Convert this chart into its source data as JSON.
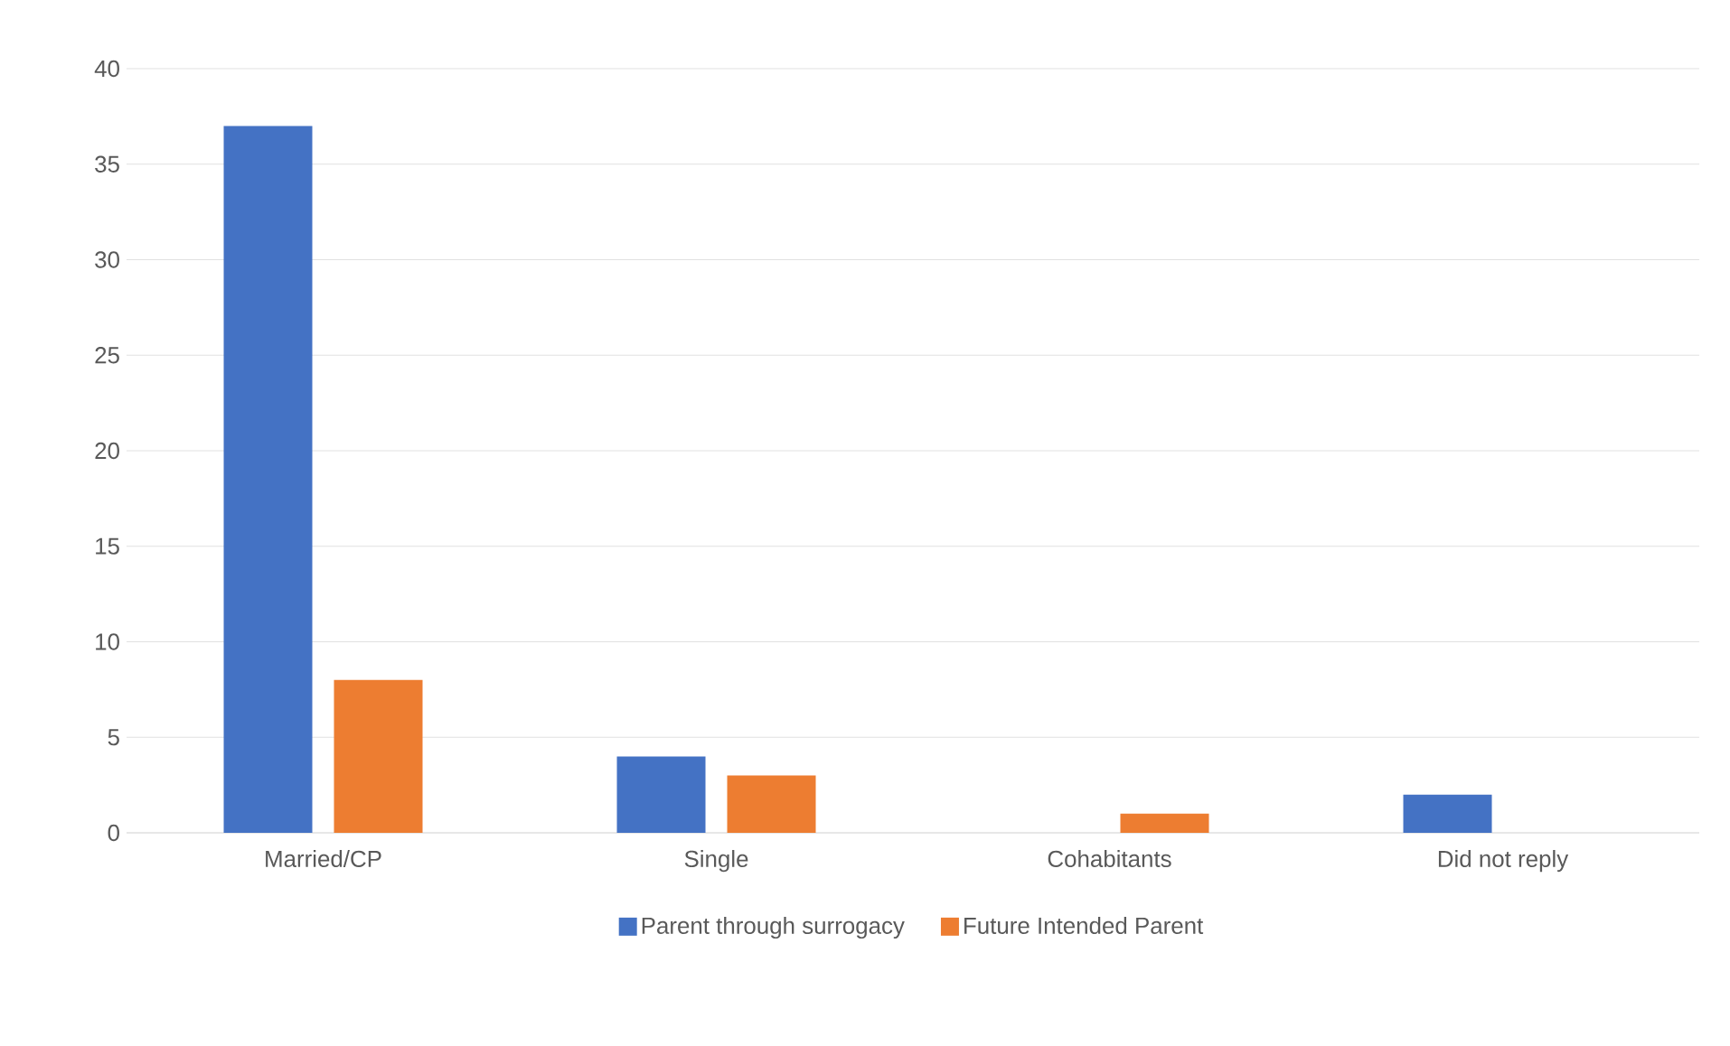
{
  "chart_data": {
    "type": "bar",
    "categories": [
      "Married/CP",
      "Single",
      "Cohabitants",
      "Did not reply"
    ],
    "series": [
      {
        "name": "Parent through surrogacy",
        "color": "#4472c4",
        "values": [
          37,
          4,
          0,
          2
        ]
      },
      {
        "name": "Future Intended Parent",
        "color": "#ed7d31",
        "values": [
          8,
          3,
          1,
          0
        ]
      }
    ],
    "ylim": [
      0,
      40
    ],
    "yticks": [
      0,
      5,
      10,
      15,
      20,
      25,
      30,
      35,
      40
    ],
    "grid": "y",
    "legend": "bottom"
  }
}
